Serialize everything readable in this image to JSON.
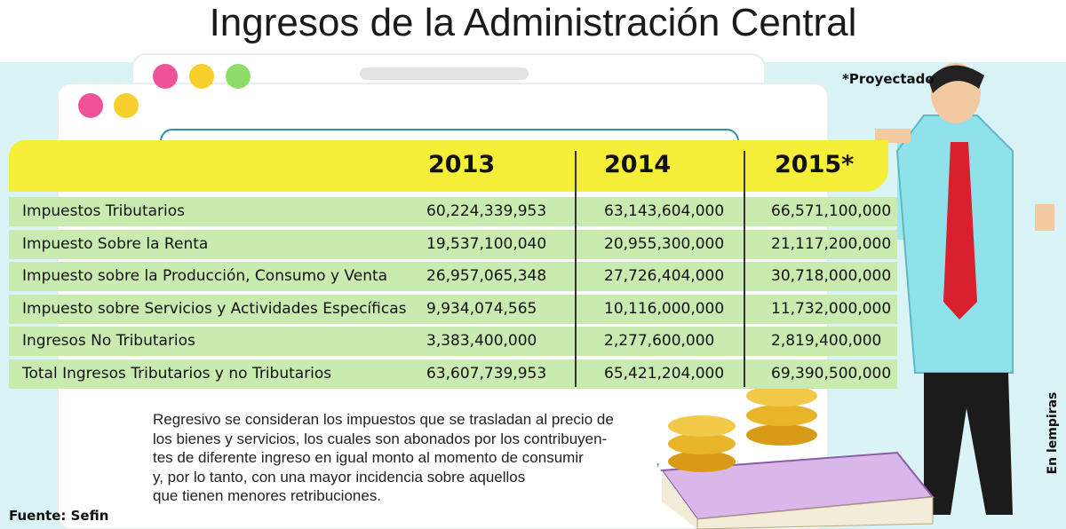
{
  "title": "Ingresos de la Administración Central",
  "note": "*Proyectado",
  "table": {
    "columns": [
      "2013",
      "2014",
      "2015*"
    ],
    "rows": [
      {
        "label": "Impuestos Tributarios",
        "values": [
          "60,224,339,953",
          "63,143,604,000",
          "66,571,100,000"
        ]
      },
      {
        "label": "Impuesto Sobre la Renta",
        "values": [
          "19,537,100,040",
          "20,955,300,000",
          "21,117,200,000"
        ]
      },
      {
        "label": "Impuesto sobre la Producción, Consumo y Venta",
        "values": [
          "26,957,065,348",
          "27,726,404,000",
          "30,718,000,000"
        ]
      },
      {
        "label": "Impuesto sobre Servicios y Actividades Específicas",
        "values": [
          "9,934,074,565",
          "10,116,000,000",
          "11,732,000,000"
        ]
      },
      {
        "label": "Ingresos No Tributarios",
        "values": [
          "3,383,400,000",
          "2,277,600,000",
          "2,819,400,000"
        ]
      },
      {
        "label": "Total Ingresos Tributarios y no Tributarios",
        "values": [
          "63,607,739,953",
          "65,421,204,000",
          "69,390,500,000"
        ]
      }
    ]
  },
  "paragraph": [
    "Regresivo se consideran los impuestos que se trasladan al precio de",
    "los bienes y servicios, los cuales son abonados por los contribuyen-",
    "tes de diferente ingreso en igual monto al momento de consumir",
    "y, por lo tanto, con una mayor incidencia sobre aquellos",
    "que tienen menores retribuciones."
  ],
  "source": "Fuente: Sefin",
  "unit": "En lempiras"
}
